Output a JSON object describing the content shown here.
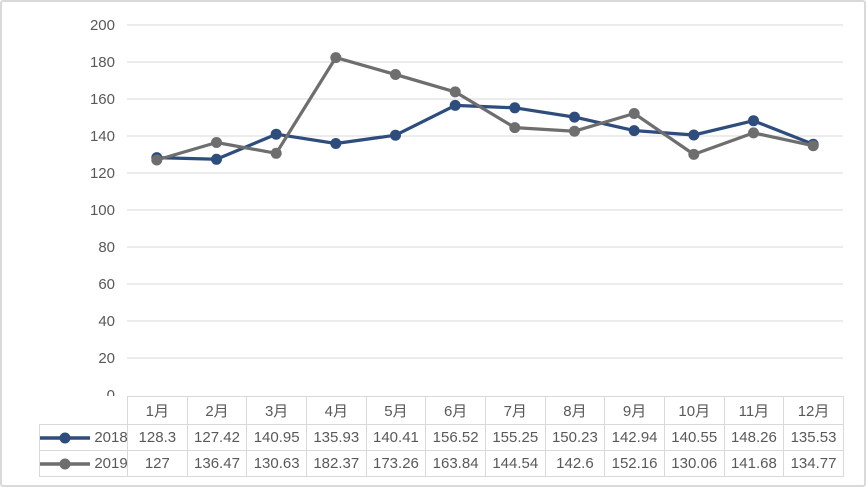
{
  "chart_data": {
    "type": "line",
    "title": "",
    "xlabel": "",
    "ylabel": "",
    "categories": [
      "1月",
      "2月",
      "3月",
      "4月",
      "5月",
      "6月",
      "7月",
      "8月",
      "9月",
      "10月",
      "11月",
      "12月"
    ],
    "series": [
      {
        "name": "2018",
        "color": "#2E4D7D",
        "values": [
          128.3,
          127.42,
          140.95,
          135.93,
          140.41,
          156.52,
          155.25,
          150.23,
          142.94,
          140.55,
          148.26,
          135.53
        ]
      },
      {
        "name": "2019",
        "color": "#6E6E6E",
        "values": [
          127,
          136.47,
          130.63,
          182.37,
          173.26,
          163.84,
          144.54,
          142.6,
          152.16,
          130.06,
          141.68,
          134.77
        ]
      }
    ],
    "ylim": [
      0,
      200
    ],
    "ytick_step": 20,
    "y_tick_labels": [
      "0",
      "20",
      "40",
      "60",
      "80",
      "100",
      "120",
      "140",
      "160",
      "180",
      "200"
    ],
    "grid": true,
    "legend_position": "data-table-left",
    "data_table_shown": true,
    "marker": "circle",
    "colors": {
      "gridline": "#D9D9D9",
      "axis_text": "#595959",
      "table_border": "#D9D9D9",
      "table_text": "#595959",
      "chart_border": "#D9D9D9",
      "background": "#FFFFFF"
    }
  }
}
